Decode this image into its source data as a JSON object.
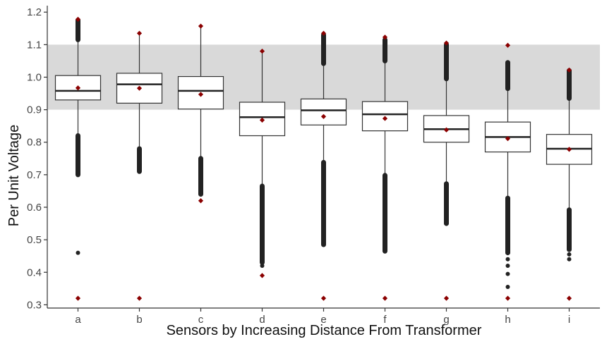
{
  "chart_data": {
    "type": "box",
    "title": "",
    "xlabel": "Sensors by Increasing Distance From Transformer",
    "ylabel": "Per Unit Voltage",
    "ylim": [
      0.29,
      1.22
    ],
    "yticks": [
      "0.3",
      "0.4",
      "0.5",
      "0.6",
      "0.7",
      "0.8",
      "0.9",
      "1.0",
      "1.1",
      "1.2"
    ],
    "ytick_values": [
      0.3,
      0.4,
      0.5,
      0.6,
      0.7,
      0.8,
      0.9,
      1.0,
      1.1,
      1.2
    ],
    "categories": [
      "a",
      "b",
      "c",
      "d",
      "e",
      "f",
      "g",
      "h",
      "i"
    ],
    "shaded_band": {
      "from": 0.9,
      "to": 1.1,
      "color": "#d9d9d9"
    },
    "grid": false,
    "colors": {
      "box_fill": "#ffffff",
      "box_stroke": "#333333",
      "whisker": "#333333",
      "outlier": "#222222",
      "mean_marker": "#8b0000",
      "axis": "#333333"
    },
    "boxes": [
      {
        "category": "a",
        "whisker_low": 0.82,
        "q1": 0.93,
        "median": 0.958,
        "q3": 1.005,
        "whisker_high": 1.115,
        "mean": 0.967,
        "min_marker": 0.32,
        "max_marker": 1.178,
        "outliers_low": [
          0.7,
          0.82
        ],
        "outliers_high": [
          1.115,
          1.175
        ],
        "outlier_points": [
          0.46
        ]
      },
      {
        "category": "b",
        "whisker_low": 0.78,
        "q1": 0.92,
        "median": 0.978,
        "q3": 1.012,
        "whisker_high": 1.133,
        "mean": 0.966,
        "min_marker": 0.32,
        "max_marker": 1.135,
        "outliers_low": [
          0.71,
          0.78
        ],
        "outliers_high": [],
        "outlier_points": []
      },
      {
        "category": "c",
        "whisker_low": 0.75,
        "q1": 0.902,
        "median": 0.958,
        "q3": 1.002,
        "whisker_high": 1.155,
        "mean": 0.947,
        "min_marker": 0.62,
        "max_marker": 1.157,
        "outliers_low": [
          0.64,
          0.75
        ],
        "outliers_high": [],
        "outlier_points": []
      },
      {
        "category": "d",
        "whisker_low": 0.665,
        "q1": 0.82,
        "median": 0.877,
        "q3": 0.923,
        "whisker_high": 1.078,
        "mean": 0.868,
        "min_marker": 0.39,
        "max_marker": 1.08,
        "outliers_low": [
          0.43,
          0.665
        ],
        "outliers_high": [],
        "outlier_points": [
          0.42
        ]
      },
      {
        "category": "e",
        "whisker_low": 0.738,
        "q1": 0.853,
        "median": 0.898,
        "q3": 0.933,
        "whisker_high": 1.042,
        "mean": 0.879,
        "min_marker": 0.32,
        "max_marker": 1.135,
        "outliers_low": [
          0.485,
          0.738
        ],
        "outliers_high": [
          1.042,
          1.13
        ],
        "outlier_points": []
      },
      {
        "category": "f",
        "whisker_low": 0.698,
        "q1": 0.835,
        "median": 0.886,
        "q3": 0.925,
        "whisker_high": 1.05,
        "mean": 0.873,
        "min_marker": 0.32,
        "max_marker": 1.123,
        "outliers_low": [
          0.465,
          0.698
        ],
        "outliers_high": [
          1.05,
          1.115
        ],
        "outlier_points": []
      },
      {
        "category": "g",
        "whisker_low": 0.672,
        "q1": 0.8,
        "median": 0.84,
        "q3": 0.882,
        "whisker_high": 0.995,
        "mean": 0.838,
        "min_marker": 0.32,
        "max_marker": 1.105,
        "outliers_low": [
          0.55,
          0.672
        ],
        "outliers_high": [
          0.995,
          1.1
        ],
        "outlier_points": []
      },
      {
        "category": "h",
        "whisker_low": 0.628,
        "q1": 0.77,
        "median": 0.816,
        "q3": 0.862,
        "whisker_high": 0.965,
        "mean": 0.811,
        "min_marker": 0.32,
        "max_marker": 1.098,
        "outliers_low": [
          0.46,
          0.628
        ],
        "outliers_high": [
          0.965,
          1.045
        ],
        "outlier_points": [
          0.44,
          0.42,
          0.395,
          0.355
        ]
      },
      {
        "category": "i",
        "whisker_low": 0.592,
        "q1": 0.732,
        "median": 0.78,
        "q3": 0.824,
        "whisker_high": 0.935,
        "mean": 0.778,
        "min_marker": 0.32,
        "max_marker": 1.022,
        "outliers_low": [
          0.47,
          0.592
        ],
        "outliers_high": [
          0.935,
          1.02
        ],
        "outlier_points": [
          0.455,
          0.44
        ]
      }
    ]
  }
}
